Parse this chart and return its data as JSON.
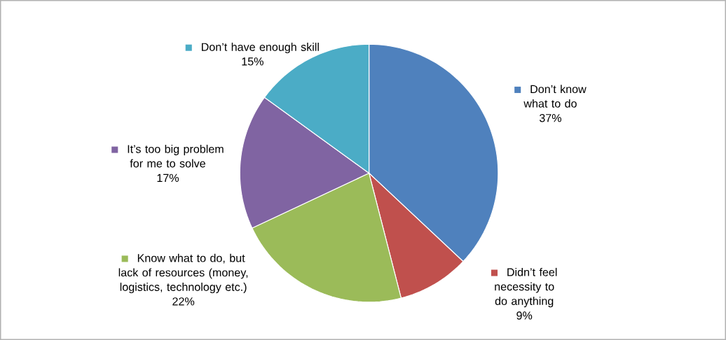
{
  "chart_data": {
    "type": "pie",
    "categories": [
      "Don’t know what to do",
      "Didn’t feel necessity to do anything",
      "Know what to do, but lack of resources (money, logistics, technology etc.)",
      "It’s too big problem for me to solve",
      "Don’t have enough skill"
    ],
    "values": [
      37,
      9,
      22,
      17,
      15
    ],
    "colors": [
      "#4f81bd",
      "#c0504d",
      "#9bbb59",
      "#8064a2",
      "#4bacc6"
    ],
    "value_labels": [
      "37%",
      "9%",
      "22%",
      "17%",
      "15%"
    ],
    "legend": "bottom left"
  }
}
